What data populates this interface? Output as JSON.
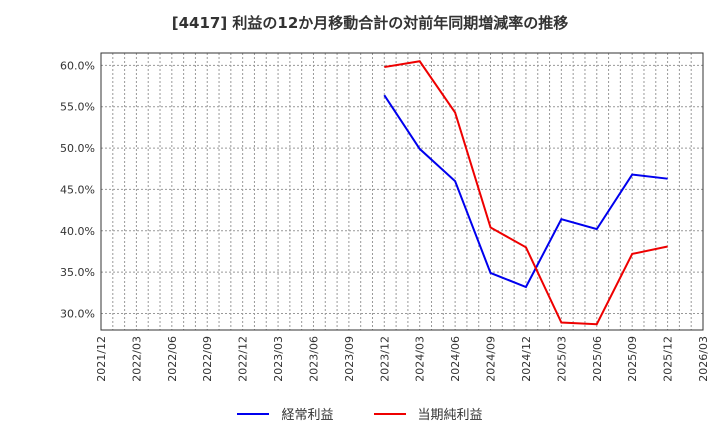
{
  "title": "[4417]  利益の12か月移動合計の対前年同期増減率の推移",
  "colors": {
    "series1": "#0000ee",
    "series2": "#ee0000",
    "grid": "#999999",
    "axis": "#333333"
  },
  "chart_data": {
    "type": "line",
    "title": "[4417]  利益の12か月移動合計の対前年同期増減率の推移",
    "xlabel": "",
    "ylabel": "",
    "ylim": [
      28.0,
      61.5
    ],
    "yticks": [
      "30.0%",
      "35.0%",
      "40.0%",
      "45.0%",
      "50.0%",
      "55.0%",
      "60.0%"
    ],
    "ytick_values": [
      30,
      35,
      40,
      45,
      50,
      55,
      60
    ],
    "xticks": [
      "2021/12",
      "2022/03",
      "2022/06",
      "2022/09",
      "2022/12",
      "2023/03",
      "2023/06",
      "2023/09",
      "2023/12",
      "2024/03",
      "2024/06",
      "2024/09",
      "2024/12",
      "2025/03",
      "2025/06",
      "2025/09",
      "2025/12",
      "2026/03"
    ],
    "grid": true,
    "legend_position": "bottom",
    "x": [
      "2023/12",
      "2024/03",
      "2024/06",
      "2024/09",
      "2024/12",
      "2025/03",
      "2025/06",
      "2025/09",
      "2025/12"
    ],
    "series": [
      {
        "name": "経常利益",
        "color": "#0000ee",
        "values": [
          56.4,
          49.9,
          46.0,
          34.9,
          33.2,
          41.4,
          40.2,
          46.8,
          46.3
        ]
      },
      {
        "name": "当期純利益",
        "color": "#ee0000",
        "values": [
          59.8,
          60.5,
          54.3,
          40.4,
          38.0,
          28.9,
          28.7,
          37.2,
          38.1
        ]
      }
    ]
  },
  "legend": [
    {
      "label": "経常利益",
      "color": "#0000ee"
    },
    {
      "label": "当期純利益",
      "color": "#ee0000"
    }
  ]
}
